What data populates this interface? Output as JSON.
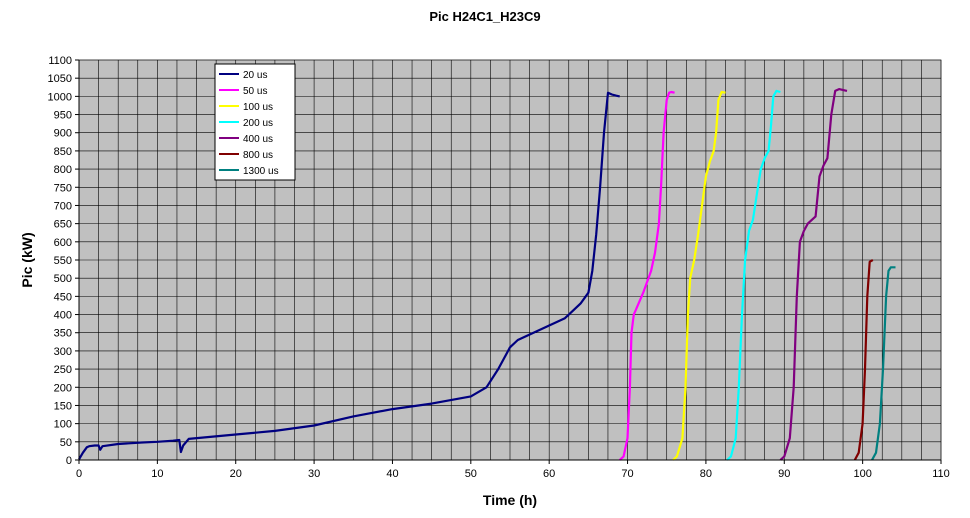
{
  "chart_data": {
    "type": "line",
    "title": "Pic H24C1_H23C9",
    "xlabel": "Time (h)",
    "ylabel": "Pic (kW)",
    "xlim": [
      0,
      110
    ],
    "ylim": [
      0,
      1100
    ],
    "xticks": [
      0,
      10,
      20,
      30,
      40,
      50,
      60,
      70,
      80,
      90,
      100,
      110
    ],
    "yticks": [
      0,
      50,
      100,
      150,
      200,
      250,
      300,
      350,
      400,
      450,
      500,
      550,
      600,
      650,
      700,
      750,
      800,
      850,
      900,
      950,
      1000,
      1050,
      1100
    ],
    "grid": true,
    "legend_position": "top-left",
    "plot_background": "#c0c0c0",
    "series": [
      {
        "name": "20 us",
        "color": "#000080",
        "x": [
          0,
          0.5,
          1,
          1.3,
          2,
          2.5,
          2.7,
          3,
          5,
          8,
          10,
          12,
          12.8,
          13,
          13.3,
          14,
          20,
          25,
          30,
          35,
          40,
          45,
          50,
          52,
          53.5,
          55,
          56,
          58,
          60,
          62,
          63,
          64,
          65,
          65.5,
          66,
          66.5,
          67,
          67.5,
          68,
          68.5,
          69
        ],
        "y": [
          2,
          20,
          35,
          38,
          40,
          40,
          28,
          38,
          44,
          48,
          50,
          53,
          55,
          22,
          40,
          58,
          70,
          80,
          95,
          120,
          140,
          155,
          175,
          200,
          250,
          310,
          330,
          350,
          370,
          390,
          410,
          430,
          460,
          520,
          620,
          750,
          900,
          1010,
          1005,
          1002,
          1000
        ]
      },
      {
        "name": "50 us",
        "color": "#ff00ff",
        "x": [
          69,
          69.5,
          70,
          70.3,
          70.5,
          70.8,
          71,
          72,
          73,
          73.5,
          74,
          74.3,
          74.6,
          75,
          75.3,
          75.6,
          76
        ],
        "y": [
          0,
          10,
          60,
          200,
          350,
          400,
          410,
          460,
          520,
          570,
          650,
          760,
          900,
          990,
          1010,
          1012,
          1010
        ]
      },
      {
        "name": "100 us",
        "color": "#ffff00",
        "x": [
          75.8,
          76.3,
          77,
          77.4,
          77.7,
          78,
          78.5,
          79,
          79.5,
          80,
          80.5,
          81,
          81.3,
          81.6,
          82,
          82.5
        ],
        "y": [
          0,
          10,
          60,
          200,
          400,
          500,
          550,
          620,
          700,
          780,
          820,
          850,
          900,
          990,
          1012,
          1010
        ]
      },
      {
        "name": "200 us",
        "color": "#00ffff",
        "x": [
          82.7,
          83.2,
          83.8,
          84.2,
          84.6,
          85,
          85.5,
          86,
          86.5,
          87,
          87.5,
          88,
          88.3,
          88.6,
          89,
          89.5
        ],
        "y": [
          0,
          10,
          60,
          200,
          400,
          550,
          630,
          660,
          730,
          800,
          830,
          850,
          920,
          1000,
          1015,
          1012
        ]
      },
      {
        "name": "400 us",
        "color": "#800080",
        "x": [
          89.5,
          90,
          90.7,
          91.2,
          91.6,
          92,
          92.5,
          93,
          94,
          94.5,
          95,
          95.5,
          96,
          96.5,
          97,
          98
        ],
        "y": [
          0,
          10,
          60,
          200,
          450,
          600,
          630,
          650,
          670,
          780,
          810,
          830,
          950,
          1015,
          1020,
          1015
        ]
      },
      {
        "name": "800 us",
        "color": "#800000",
        "x": [
          99,
          99.5,
          100,
          100.3,
          100.6,
          100.9,
          101.3
        ],
        "y": [
          0,
          20,
          100,
          250,
          450,
          545,
          550
        ]
      },
      {
        "name": "1300 us",
        "color": "#008080",
        "x": [
          101.2,
          101.7,
          102.2,
          102.6,
          103,
          103.3,
          103.6,
          104.2
        ],
        "y": [
          0,
          20,
          100,
          250,
          450,
          520,
          530,
          530
        ]
      }
    ]
  }
}
